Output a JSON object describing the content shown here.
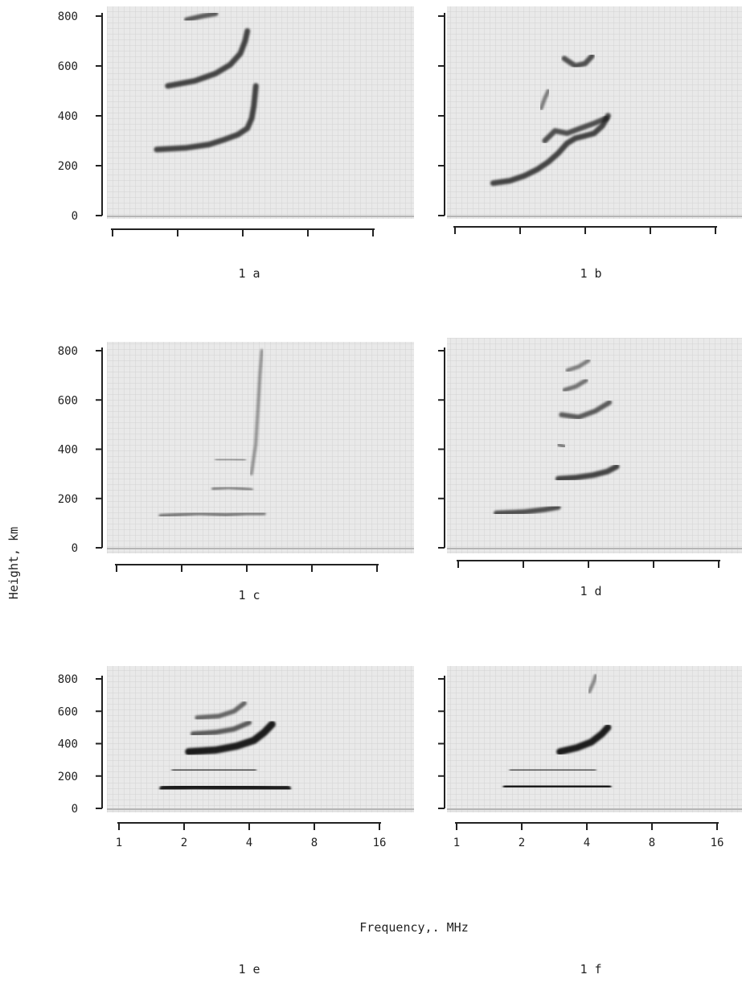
{
  "figure": {
    "ylabel": "Height, km",
    "xlabel": "Frequency,. MHz"
  },
  "chart_data": [
    {
      "type": "heatmap",
      "panel_label": "1 a",
      "ylabel": "Height, km",
      "y_ticks": [
        "0",
        "200",
        "400",
        "600",
        "800"
      ],
      "x_ticks": [
        "",
        "",
        "",
        "",
        ""
      ],
      "ylim": [
        0,
        800
      ],
      "traces": [
        {
          "points": [
            [
              1.6,
              265
            ],
            [
              2.2,
              272
            ],
            [
              2.8,
              285
            ],
            [
              3.3,
              305
            ],
            [
              3.8,
              325
            ],
            [
              4.2,
              350
            ],
            [
              4.4,
              390
            ],
            [
              4.5,
              440
            ],
            [
              4.6,
              520
            ]
          ],
          "weight": 1
        },
        {
          "points": [
            [
              1.8,
              520
            ],
            [
              2.4,
              540
            ],
            [
              3.0,
              570
            ],
            [
              3.5,
              605
            ],
            [
              3.9,
              650
            ],
            [
              4.1,
              700
            ],
            [
              4.2,
              740
            ]
          ],
          "weight": 1
        },
        {
          "points": [
            [
              2.2,
              785
            ],
            [
              2.6,
              800
            ],
            [
              3.0,
              810
            ]
          ],
          "weight": 0.8
        }
      ]
    },
    {
      "type": "heatmap",
      "panel_label": "1 b",
      "ylabel": "",
      "y_ticks": [
        "0",
        "200",
        "400",
        "600",
        "800"
      ],
      "x_ticks": [
        "",
        "",
        "",
        "",
        ""
      ],
      "ylim": [
        0,
        800
      ],
      "traces": [
        {
          "points": [
            [
              1.5,
              130
            ],
            [
              1.8,
              140
            ],
            [
              2.1,
              160
            ],
            [
              2.4,
              185
            ],
            [
              2.7,
              215
            ],
            [
              3.0,
              250
            ],
            [
              3.3,
              290
            ],
            [
              3.6,
              310
            ],
            [
              4.0,
              320
            ],
            [
              4.4,
              330
            ],
            [
              4.8,
              360
            ],
            [
              5.1,
              400
            ]
          ],
          "weight": 1
        },
        {
          "points": [
            [
              2.6,
              300
            ],
            [
              2.9,
              340
            ],
            [
              3.3,
              330
            ],
            [
              3.8,
              350
            ],
            [
              4.4,
              370
            ],
            [
              5.0,
              390
            ]
          ],
          "weight": 0.9
        },
        {
          "points": [
            [
              3.2,
              630
            ],
            [
              3.6,
              600
            ],
            [
              4.0,
              610
            ],
            [
              4.3,
              640
            ]
          ],
          "weight": 0.9
        },
        {
          "points": [
            [
              2.5,
              430
            ],
            [
              2.6,
              470
            ],
            [
              2.7,
              500
            ]
          ],
          "weight": 0.5
        }
      ]
    },
    {
      "type": "heatmap",
      "panel_label": "1 c",
      "ylabel": "",
      "y_ticks": [
        "0",
        "200",
        "400",
        "600",
        "800"
      ],
      "x_ticks": [
        "",
        "",
        "",
        "",
        ""
      ],
      "ylim": [
        0,
        800
      ],
      "traces": [
        {
          "points": [
            [
              1.6,
              130
            ],
            [
              2.4,
              140
            ],
            [
              3.2,
              135
            ],
            [
              4.0,
              140
            ],
            [
              4.8,
              140
            ]
          ],
          "weight": 0.5
        },
        {
          "points": [
            [
              2.8,
              240
            ],
            [
              3.3,
              245
            ],
            [
              3.8,
              240
            ],
            [
              4.2,
              235
            ]
          ],
          "weight": 0.4
        },
        {
          "points": [
            [
              2.9,
              360
            ],
            [
              3.4,
              360
            ],
            [
              3.9,
              355
            ]
          ],
          "weight": 0.35
        },
        {
          "points": [
            [
              4.2,
              300
            ],
            [
              4.4,
              420
            ],
            [
              4.5,
              560
            ],
            [
              4.6,
              700
            ],
            [
              4.7,
              800
            ]
          ],
          "weight": 0.3
        }
      ]
    },
    {
      "type": "heatmap",
      "panel_label": "1 d",
      "ylabel": "",
      "y_ticks": [
        "0",
        "200",
        "400",
        "600",
        "800"
      ],
      "x_ticks": [
        "",
        "",
        "",
        "",
        ""
      ],
      "ylim": [
        0,
        800
      ],
      "traces": [
        {
          "points": [
            [
              1.5,
              140
            ],
            [
              2.0,
              145
            ],
            [
              2.5,
              155
            ],
            [
              2.9,
              165
            ]
          ],
          "weight": 0.9
        },
        {
          "points": [
            [
              2.9,
              280
            ],
            [
              3.5,
              285
            ],
            [
              4.2,
              295
            ],
            [
              4.9,
              310
            ],
            [
              5.4,
              330
            ]
          ],
          "weight": 1
        },
        {
          "points": [
            [
              3.0,
              540
            ],
            [
              3.6,
              530
            ],
            [
              4.3,
              555
            ],
            [
              5.0,
              590
            ]
          ],
          "weight": 0.8
        },
        {
          "points": [
            [
              3.1,
              640
            ],
            [
              3.5,
              655
            ],
            [
              3.9,
              680
            ]
          ],
          "weight": 0.6
        },
        {
          "points": [
            [
              3.2,
              720
            ],
            [
              3.6,
              735
            ],
            [
              4.0,
              760
            ]
          ],
          "weight": 0.5
        },
        {
          "points": [
            [
              2.9,
              420
            ],
            [
              3.1,
              410
            ]
          ],
          "weight": 0.5
        }
      ]
    },
    {
      "type": "heatmap",
      "panel_label": "1 e",
      "ylabel": "",
      "y_ticks": [
        "0",
        "200",
        "400",
        "600",
        "800"
      ],
      "x_ticks": [
        "1",
        "2",
        "4",
        "8",
        "16"
      ],
      "xlabel": "Frequency,. MHz",
      "ylim": [
        0,
        800
      ],
      "xscale": "log",
      "traces": [
        {
          "points": [
            [
              1.6,
              120
            ],
            [
              2.2,
              135
            ],
            [
              3.0,
              130
            ],
            [
              4.0,
              125
            ],
            [
              5.2,
              120
            ],
            [
              6.0,
              120
            ]
          ],
          "weight": 1.6
        },
        {
          "points": [
            [
              1.8,
              235
            ],
            [
              2.6,
              240
            ],
            [
              3.4,
              238
            ],
            [
              4.2,
              235
            ]
          ],
          "weight": 1
        },
        {
          "points": [
            [
              2.1,
              350
            ],
            [
              2.8,
              360
            ],
            [
              3.5,
              385
            ],
            [
              4.2,
              420
            ],
            [
              4.7,
              470
            ],
            [
              5.1,
              520
            ]
          ],
          "weight": 1.5
        },
        {
          "points": [
            [
              2.2,
              460
            ],
            [
              2.8,
              470
            ],
            [
              3.4,
              490
            ],
            [
              4.0,
              530
            ]
          ],
          "weight": 0.8
        },
        {
          "points": [
            [
              2.3,
              560
            ],
            [
              2.9,
              570
            ],
            [
              3.4,
              600
            ],
            [
              3.8,
              650
            ]
          ],
          "weight": 0.7
        }
      ]
    },
    {
      "type": "heatmap",
      "panel_label": "1 f",
      "ylabel": "",
      "y_ticks": [
        "0",
        "200",
        "400",
        "600",
        "800"
      ],
      "x_ticks": [
        "1",
        "2",
        "4",
        "8",
        "16"
      ],
      "xlabel": "Frequency,. MHz",
      "ylim": [
        0,
        800
      ],
      "xscale": "log",
      "traces": [
        {
          "points": [
            [
              1.7,
              130
            ],
            [
              2.4,
              140
            ],
            [
              3.2,
              138
            ],
            [
              4.2,
              132
            ],
            [
              5.0,
              130
            ]
          ],
          "weight": 1.5
        },
        {
          "points": [
            [
              1.8,
              235
            ],
            [
              2.6,
              240
            ],
            [
              3.4,
              238
            ],
            [
              4.3,
              235
            ]
          ],
          "weight": 0.9
        },
        {
          "points": [
            [
              3.0,
              350
            ],
            [
              3.6,
              375
            ],
            [
              4.2,
              410
            ],
            [
              4.7,
              460
            ],
            [
              5.0,
              500
            ]
          ],
          "weight": 1.4
        },
        {
          "points": [
            [
              4.1,
              720
            ],
            [
              4.3,
              780
            ],
            [
              4.4,
              820
            ]
          ],
          "weight": 0.4
        }
      ]
    }
  ]
}
